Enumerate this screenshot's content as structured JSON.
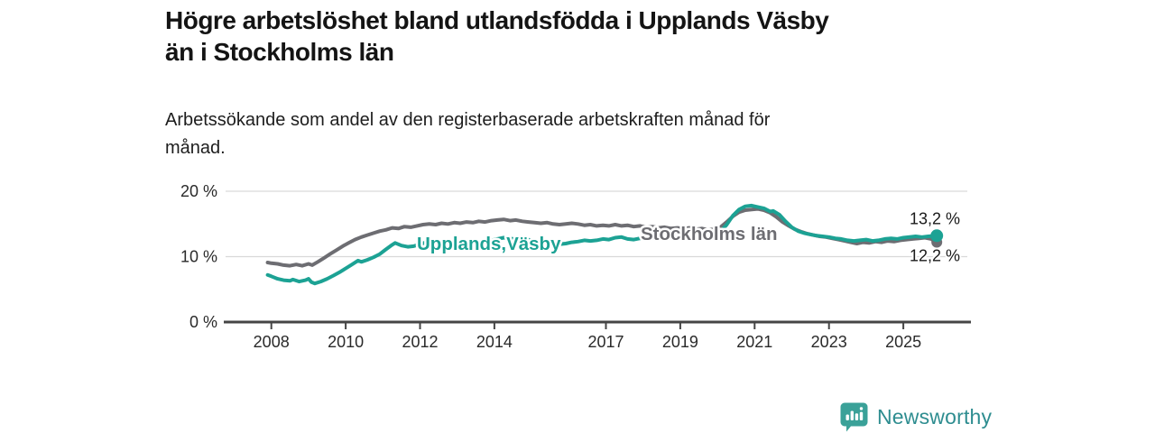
{
  "header": {
    "title_lines": [
      "Högre arbetslöshet bland utlandsfödda i Upplands Väsby",
      "än i Stockholms län"
    ],
    "subtitle_lines": [
      "Arbetssökande som andel av den registerbaserade arbetskraften månad för",
      "månad."
    ]
  },
  "footer": {
    "brand": "Newsworthy",
    "brand_color": "#2e8d90",
    "icon_name": "bar-chart-speech-bubble-icon",
    "icon_color": "#3aa198"
  },
  "chart_data": {
    "type": "line",
    "title": "Högre arbetslöshet bland utlandsfödda i Upplands Väsby än i Stockholms län",
    "subtitle": "Arbetssökande som andel av den registerbaserade arbetskraften månad för månad.",
    "xlabel": "",
    "ylabel": "",
    "ylim": [
      0,
      20
    ],
    "x_range": [
      2007.9,
      2025.9
    ],
    "grid": "horizontal",
    "legend": "inline-labels",
    "x_ticks": [
      2008,
      2010,
      2012,
      2014,
      2017,
      2019,
      2021,
      2023,
      2025
    ],
    "y_ticks": [
      {
        "value": 0,
        "label": "0 %"
      },
      {
        "value": 10,
        "label": "10 %"
      },
      {
        "value": 20,
        "label": "20 %"
      }
    ],
    "colors": {
      "upplands_vasby": "#1ca294",
      "stockholms_lan": "#6d6d72",
      "grid": "#d9d9d9",
      "axis": "#454545",
      "text": "#1a1a1a"
    },
    "series": [
      {
        "name": "Stockholms län",
        "inline_label": "Stockholms län",
        "color": "#6d6d72",
        "end_value": 12.2,
        "end_label": "12,2 %",
        "points": [
          [
            2007.9,
            9.1
          ],
          [
            2008.0,
            9.0
          ],
          [
            2008.17,
            8.9
          ],
          [
            2008.33,
            8.7
          ],
          [
            2008.5,
            8.6
          ],
          [
            2008.67,
            8.8
          ],
          [
            2008.83,
            8.6
          ],
          [
            2009.0,
            8.9
          ],
          [
            2009.1,
            8.7
          ],
          [
            2009.25,
            9.2
          ],
          [
            2009.42,
            9.8
          ],
          [
            2009.58,
            10.4
          ],
          [
            2009.75,
            11.0
          ],
          [
            2009.92,
            11.6
          ],
          [
            2010.08,
            12.1
          ],
          [
            2010.25,
            12.6
          ],
          [
            2010.42,
            13.0
          ],
          [
            2010.58,
            13.3
          ],
          [
            2010.75,
            13.6
          ],
          [
            2010.92,
            13.9
          ],
          [
            2011.08,
            14.1
          ],
          [
            2011.25,
            14.4
          ],
          [
            2011.42,
            14.3
          ],
          [
            2011.58,
            14.6
          ],
          [
            2011.75,
            14.5
          ],
          [
            2011.92,
            14.7
          ],
          [
            2012.08,
            14.9
          ],
          [
            2012.25,
            15.0
          ],
          [
            2012.42,
            14.9
          ],
          [
            2012.58,
            15.1
          ],
          [
            2012.75,
            15.0
          ],
          [
            2012.92,
            15.2
          ],
          [
            2013.08,
            15.1
          ],
          [
            2013.25,
            15.3
          ],
          [
            2013.42,
            15.2
          ],
          [
            2013.58,
            15.4
          ],
          [
            2013.75,
            15.3
          ],
          [
            2013.92,
            15.5
          ],
          [
            2014.08,
            15.6
          ],
          [
            2014.25,
            15.7
          ],
          [
            2014.42,
            15.5
          ],
          [
            2014.58,
            15.6
          ],
          [
            2014.75,
            15.4
          ],
          [
            2014.92,
            15.3
          ],
          [
            2015.08,
            15.2
          ],
          [
            2015.25,
            15.1
          ],
          [
            2015.42,
            15.2
          ],
          [
            2015.58,
            15.0
          ],
          [
            2015.75,
            14.9
          ],
          [
            2015.92,
            15.0
          ],
          [
            2016.08,
            15.1
          ],
          [
            2016.25,
            15.0
          ],
          [
            2016.42,
            14.8
          ],
          [
            2016.58,
            14.9
          ],
          [
            2016.75,
            14.7
          ],
          [
            2016.92,
            14.8
          ],
          [
            2017.08,
            14.7
          ],
          [
            2017.25,
            14.9
          ],
          [
            2017.42,
            14.7
          ],
          [
            2017.58,
            14.8
          ],
          [
            2017.75,
            14.6
          ],
          [
            2017.92,
            14.7
          ],
          [
            2018.08,
            14.5
          ],
          [
            2018.25,
            14.6
          ],
          [
            2018.42,
            14.4
          ],
          [
            2018.58,
            14.5
          ],
          [
            2018.75,
            14.3
          ],
          [
            2018.92,
            14.4
          ],
          [
            2019.08,
            14.3
          ],
          [
            2019.25,
            14.4
          ],
          [
            2019.42,
            14.2
          ],
          [
            2019.58,
            14.3
          ],
          [
            2019.75,
            14.1
          ],
          [
            2019.92,
            14.2
          ],
          [
            2020.08,
            14.5
          ],
          [
            2020.25,
            15.3
          ],
          [
            2020.42,
            16.2
          ],
          [
            2020.58,
            16.8
          ],
          [
            2020.75,
            17.1
          ],
          [
            2020.92,
            17.2
          ],
          [
            2021.08,
            17.3
          ],
          [
            2021.25,
            17.1
          ],
          [
            2021.42,
            16.7
          ],
          [
            2021.58,
            16.1
          ],
          [
            2021.75,
            15.3
          ],
          [
            2021.92,
            14.7
          ],
          [
            2022.08,
            14.2
          ],
          [
            2022.25,
            13.8
          ],
          [
            2022.42,
            13.5
          ],
          [
            2022.58,
            13.3
          ],
          [
            2022.75,
            13.1
          ],
          [
            2022.92,
            13.0
          ],
          [
            2023.08,
            12.8
          ],
          [
            2023.25,
            12.6
          ],
          [
            2023.42,
            12.4
          ],
          [
            2023.58,
            12.2
          ],
          [
            2023.75,
            12.0
          ],
          [
            2023.92,
            12.2
          ],
          [
            2024.08,
            12.1
          ],
          [
            2024.25,
            12.3
          ],
          [
            2024.42,
            12.2
          ],
          [
            2024.58,
            12.4
          ],
          [
            2024.75,
            12.3
          ],
          [
            2024.92,
            12.5
          ],
          [
            2025.08,
            12.6
          ],
          [
            2025.25,
            12.7
          ],
          [
            2025.42,
            12.8
          ],
          [
            2025.58,
            12.9
          ],
          [
            2025.75,
            12.7
          ],
          [
            2025.9,
            12.2
          ]
        ]
      },
      {
        "name": "Upplands Väsby",
        "inline_label": "Upplands,Väsby",
        "color": "#1ca294",
        "end_value": 13.2,
        "end_label": "13,2 %",
        "points": [
          [
            2007.9,
            7.2
          ],
          [
            2008.0,
            7.0
          ],
          [
            2008.17,
            6.6
          ],
          [
            2008.33,
            6.4
          ],
          [
            2008.5,
            6.3
          ],
          [
            2008.58,
            6.5
          ],
          [
            2008.75,
            6.2
          ],
          [
            2008.92,
            6.4
          ],
          [
            2009.0,
            6.6
          ],
          [
            2009.08,
            6.1
          ],
          [
            2009.17,
            5.9
          ],
          [
            2009.33,
            6.2
          ],
          [
            2009.5,
            6.6
          ],
          [
            2009.67,
            7.1
          ],
          [
            2009.83,
            7.6
          ],
          [
            2010.0,
            8.2
          ],
          [
            2010.17,
            8.8
          ],
          [
            2010.33,
            9.4
          ],
          [
            2010.42,
            9.2
          ],
          [
            2010.58,
            9.5
          ],
          [
            2010.75,
            9.9
          ],
          [
            2010.92,
            10.4
          ],
          [
            2011.08,
            11.1
          ],
          [
            2011.25,
            11.8
          ],
          [
            2011.33,
            12.1
          ],
          [
            2011.5,
            11.7
          ],
          [
            2011.67,
            11.5
          ],
          [
            2011.83,
            11.6
          ],
          [
            2012.0,
            11.9
          ],
          [
            2012.17,
            12.2
          ],
          [
            2012.33,
            12.4
          ],
          [
            2012.5,
            12.1
          ],
          [
            2012.67,
            11.9
          ],
          [
            2012.83,
            12.0
          ],
          [
            2013.0,
            12.1
          ],
          [
            2013.25,
            12.4
          ],
          [
            2013.5,
            12.3
          ],
          [
            2013.75,
            12.1
          ],
          [
            2014.0,
            12.6
          ],
          [
            2014.25,
            12.9
          ],
          [
            2014.5,
            12.7
          ],
          [
            2014.75,
            12.8
          ],
          [
            2015.0,
            12.5
          ],
          [
            2015.25,
            12.2
          ],
          [
            2015.42,
            11.9
          ],
          [
            2015.58,
            11.7
          ],
          [
            2015.75,
            11.9
          ],
          [
            2015.92,
            12.0
          ],
          [
            2016.08,
            12.2
          ],
          [
            2016.25,
            12.3
          ],
          [
            2016.42,
            12.5
          ],
          [
            2016.58,
            12.4
          ],
          [
            2016.75,
            12.5
          ],
          [
            2016.92,
            12.7
          ],
          [
            2017.08,
            12.6
          ],
          [
            2017.25,
            12.9
          ],
          [
            2017.42,
            13.0
          ],
          [
            2017.58,
            12.7
          ],
          [
            2017.75,
            12.6
          ],
          [
            2017.92,
            12.8
          ],
          [
            2018.08,
            12.9
          ],
          [
            2018.25,
            12.8
          ],
          [
            2018.42,
            13.0
          ],
          [
            2018.58,
            12.9
          ],
          [
            2018.75,
            13.0
          ],
          [
            2018.92,
            12.9
          ],
          [
            2019.08,
            13.0
          ],
          [
            2019.25,
            13.1
          ],
          [
            2019.42,
            13.0
          ],
          [
            2019.58,
            13.2
          ],
          [
            2019.75,
            13.3
          ],
          [
            2019.92,
            13.4
          ],
          [
            2020.08,
            13.8
          ],
          [
            2020.25,
            14.9
          ],
          [
            2020.42,
            16.3
          ],
          [
            2020.58,
            17.2
          ],
          [
            2020.75,
            17.7
          ],
          [
            2020.92,
            17.8
          ],
          [
            2021.08,
            17.6
          ],
          [
            2021.25,
            17.4
          ],
          [
            2021.42,
            16.9
          ],
          [
            2021.5,
            17.0
          ],
          [
            2021.67,
            16.4
          ],
          [
            2021.83,
            15.4
          ],
          [
            2022.0,
            14.5
          ],
          [
            2022.17,
            13.9
          ],
          [
            2022.33,
            13.6
          ],
          [
            2022.5,
            13.4
          ],
          [
            2022.67,
            13.2
          ],
          [
            2022.83,
            13.1
          ],
          [
            2023.0,
            13.0
          ],
          [
            2023.17,
            12.8
          ],
          [
            2023.33,
            12.7
          ],
          [
            2023.5,
            12.5
          ],
          [
            2023.67,
            12.4
          ],
          [
            2023.83,
            12.5
          ],
          [
            2024.0,
            12.6
          ],
          [
            2024.17,
            12.4
          ],
          [
            2024.33,
            12.5
          ],
          [
            2024.5,
            12.7
          ],
          [
            2024.67,
            12.8
          ],
          [
            2024.83,
            12.7
          ],
          [
            2025.0,
            12.9
          ],
          [
            2025.17,
            13.0
          ],
          [
            2025.33,
            13.1
          ],
          [
            2025.5,
            13.0
          ],
          [
            2025.67,
            13.1
          ],
          [
            2025.9,
            13.2
          ]
        ]
      }
    ]
  }
}
